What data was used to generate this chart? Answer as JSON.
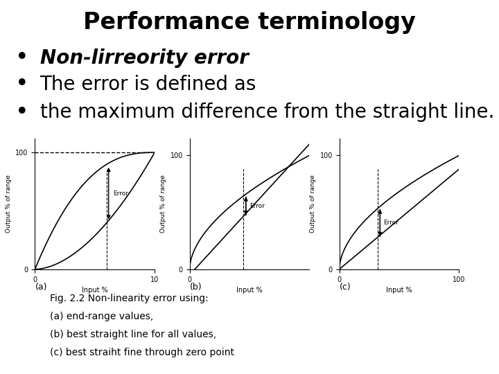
{
  "title": "Performance terminology",
  "bullets": [
    {
      "text": "Non-lirreority error",
      "bold_italic": true
    },
    {
      "text": "The error is defined as",
      "bold_italic": false
    },
    {
      "text": "the maximum difference from the straight line.",
      "bold_italic": false
    }
  ],
  "caption_lines": [
    "Fig. 2.2 Non-linearity error using:",
    "(a) end-range values,",
    "(b) best straight line for all values,",
    "(c) best straiht fine through zero point"
  ],
  "subplot_labels": [
    "(a)",
    "(b)",
    "(c)"
  ],
  "background_color": "#ffffff",
  "title_fontsize": 24,
  "bullet_fontsize": 20,
  "caption_fontsize": 10
}
